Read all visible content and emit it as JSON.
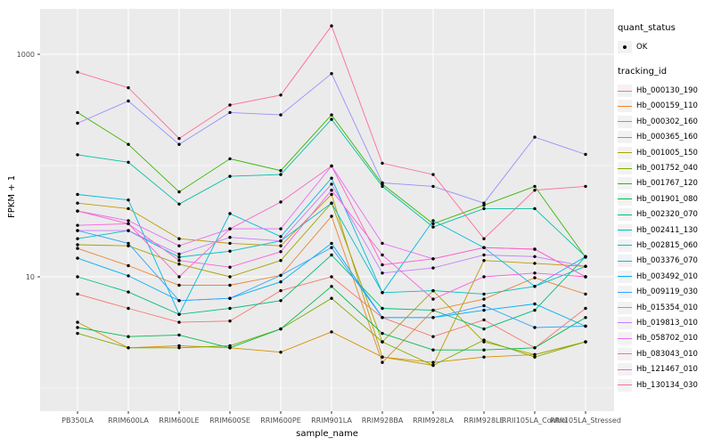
{
  "legend": {
    "quant_title": "quant_status",
    "quant_items": [
      {
        "label": "OK",
        "shape": "point"
      }
    ],
    "series_title": "tracking_id"
  },
  "chart_data": {
    "type": "line",
    "title": "",
    "xlabel": "sample_name",
    "ylabel": "FPKM + 1",
    "y_scale": "log10",
    "ylim": [
      0.6,
      2600
    ],
    "yticks": [
      {
        "value": 1000,
        "label": "1000"
      },
      {
        "value": 10,
        "label": "10"
      }
    ],
    "minor_gridline_values": [
      1,
      100
    ],
    "major_gridline_values": [
      10,
      1000
    ],
    "grid": "on-white",
    "legend_position": "right",
    "panel_background": "#EBEBEB",
    "gridline_color": "#FFFFFF",
    "point_color": "#000000",
    "tick_label_color": "#4D4D4D",
    "categories": [
      "PB350LA",
      "RRIM600LA",
      "RRIM600LE",
      "RRIM600SE",
      "RRIM600PE",
      "RRIM901LA",
      "RRIM928BA",
      "RRIM928LA",
      "RRIM928LE",
      "RRII105LA_Control",
      "RRII105LA_Stressed"
    ],
    "series": [
      {
        "name": "Hb_000130_190",
        "color": "#F8766D",
        "values": [
          7,
          5.2,
          3.9,
          4.0,
          7.5,
          10,
          4.3,
          2.9,
          4.1,
          2.3,
          5.2
        ]
      },
      {
        "name": "Hb_000159_110",
        "color": "#EA8331",
        "values": [
          18,
          12.6,
          8.4,
          8.4,
          10.3,
          35,
          1.7,
          5.0,
          6.3,
          9.8,
          7.0
        ]
      },
      {
        "name": "Hb_000302_160",
        "color": "#D89000",
        "values": [
          3.9,
          2.3,
          2.4,
          2.3,
          2.1,
          3.2,
          1.9,
          1.7,
          1.9,
          2.0,
          2.6
        ]
      },
      {
        "name": "Hb_000365_160",
        "color": "#C09B00",
        "values": [
          46,
          41,
          22,
          20,
          19,
          55,
          1.9,
          1.6,
          14,
          13.2,
          12.4
        ]
      },
      {
        "name": "Hb_001005_150",
        "color": "#A3A500",
        "values": [
          19.4,
          19,
          13,
          10,
          14,
          46,
          2.6,
          7.5,
          2.6,
          2.0,
          2.6
        ]
      },
      {
        "name": "Hb_001752_040",
        "color": "#7CAE00",
        "values": [
          3.1,
          2.3,
          2.3,
          2.4,
          3.4,
          6.4,
          2.6,
          1.6,
          2.7,
          1.9,
          2.6
        ]
      },
      {
        "name": "Hb_001767_120",
        "color": "#39B600",
        "values": [
          300,
          155,
          58,
          115,
          90,
          285,
          68,
          30,
          44,
          65,
          15
        ]
      },
      {
        "name": "Hb_001901_080",
        "color": "#00BB4E",
        "values": [
          3.5,
          2.9,
          3.0,
          2.3,
          3.4,
          8.2,
          3.1,
          2.2,
          2.2,
          2.3,
          4.3
        ]
      },
      {
        "name": "Hb_002320_070",
        "color": "#00BF7D",
        "values": [
          10,
          7.3,
          4.6,
          5.2,
          6.1,
          15.7,
          5.2,
          5.0,
          3.4,
          5.0,
          15.2
        ]
      },
      {
        "name": "Hb_002411_130",
        "color": "#00C1A3",
        "values": [
          125,
          107,
          45,
          80,
          83,
          260,
          65,
          28,
          41,
          41,
          15.2
        ]
      },
      {
        "name": "Hb_002815_060",
        "color": "#00BFC4",
        "values": [
          22,
          26,
          15,
          17,
          21,
          46,
          7.2,
          7.5,
          7.0,
          8.2,
          12.4
        ]
      },
      {
        "name": "Hb_003376_070",
        "color": "#00BAE0",
        "values": [
          55,
          49,
          4.6,
          37,
          23,
          77,
          7.2,
          32,
          18.3,
          8.2,
          15.2
        ]
      },
      {
        "name": "Hb_003492_010",
        "color": "#00B0F6",
        "values": [
          14.7,
          10.2,
          6.1,
          6.4,
          9.0,
          20,
          4.3,
          4.3,
          5.0,
          5.7,
          3.6
        ]
      },
      {
        "name": "Hb_009119_030",
        "color": "#35A2FF",
        "values": [
          26,
          20,
          6.1,
          6.4,
          10.3,
          18.3,
          4.3,
          4.3,
          5.5,
          3.5,
          3.6
        ]
      },
      {
        "name": "Hb_015354_010",
        "color": "#9590FF",
        "values": [
          240,
          380,
          155,
          300,
          285,
          670,
          70,
          65,
          46,
          180,
          126
        ]
      },
      {
        "name": "Hb_019813_010",
        "color": "#C77CFF",
        "values": [
          26,
          26,
          16,
          22.6,
          21,
          68,
          10.8,
          12,
          15.7,
          15.2,
          12.4
        ]
      },
      {
        "name": "Hb_058702_010",
        "color": "#E76BF3",
        "values": [
          39,
          32,
          19,
          27,
          27,
          99,
          20,
          14.5,
          18.3,
          17.7,
          10
        ]
      },
      {
        "name": "Hb_083043_010",
        "color": "#FA62DB",
        "values": [
          29,
          30,
          14,
          12.2,
          16.8,
          60,
          15.7,
          6.3,
          10,
          10.8,
          10
        ]
      },
      {
        "name": "Hb_121467_010",
        "color": "#FF61C9",
        "values": [
          39,
          30,
          10,
          27,
          47,
          99,
          12.8,
          14.5,
          18.3,
          17.7,
          10
        ]
      },
      {
        "name": "Hb_130134_030",
        "color": "#FF6A98",
        "values": [
          690,
          500,
          175,
          350,
          430,
          1800,
          105,
          83,
          22,
          60,
          65
        ]
      }
    ]
  }
}
